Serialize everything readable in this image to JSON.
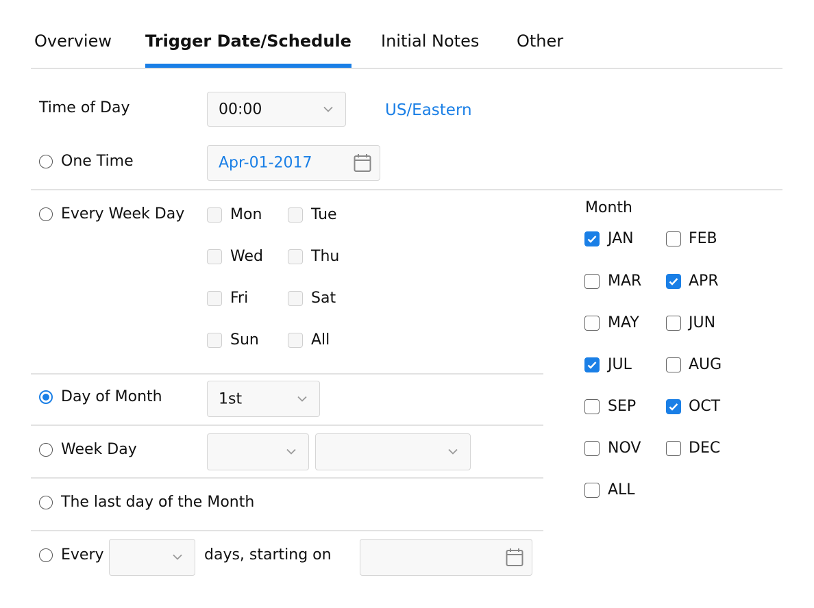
{
  "tabs": [
    {
      "label": "Overview",
      "active": false
    },
    {
      "label": "Trigger Date/Schedule",
      "active": true
    },
    {
      "label": "Initial Notes",
      "active": false
    },
    {
      "label": "Other",
      "active": false
    }
  ],
  "accent_color": "#1a7fe6",
  "time_of_day": {
    "label": "Time of Day",
    "value": "00:00",
    "timezone": "US/Eastern"
  },
  "one_time": {
    "label": "One Time",
    "selected": false,
    "date": "Apr-01-2017"
  },
  "every_week_day": {
    "label": "Every Week Day",
    "selected": false,
    "days": [
      {
        "label": "Mon",
        "checked": false
      },
      {
        "label": "Tue",
        "checked": false
      },
      {
        "label": "Wed",
        "checked": false
      },
      {
        "label": "Thu",
        "checked": false
      },
      {
        "label": "Fri",
        "checked": false
      },
      {
        "label": "Sat",
        "checked": false
      },
      {
        "label": "Sun",
        "checked": false
      },
      {
        "label": "All",
        "checked": false
      }
    ]
  },
  "day_of_month": {
    "label": "Day of Month",
    "selected": true,
    "value": "1st"
  },
  "week_day": {
    "label": "Week Day",
    "selected": false,
    "value1": "",
    "value2": ""
  },
  "last_day": {
    "label": "The last day of the Month",
    "selected": false
  },
  "every_n": {
    "label": "Every",
    "selected": false,
    "value": "",
    "suffix": "days, starting on",
    "start_date": ""
  },
  "month": {
    "label": "Month",
    "items": [
      {
        "label": "JAN",
        "checked": true
      },
      {
        "label": "FEB",
        "checked": false
      },
      {
        "label": "MAR",
        "checked": false
      },
      {
        "label": "APR",
        "checked": true
      },
      {
        "label": "MAY",
        "checked": false
      },
      {
        "label": "JUN",
        "checked": false
      },
      {
        "label": "JUL",
        "checked": true
      },
      {
        "label": "AUG",
        "checked": false
      },
      {
        "label": "SEP",
        "checked": false
      },
      {
        "label": "OCT",
        "checked": true
      },
      {
        "label": "NOV",
        "checked": false
      },
      {
        "label": "DEC",
        "checked": false
      },
      {
        "label": "ALL",
        "checked": false
      }
    ]
  }
}
